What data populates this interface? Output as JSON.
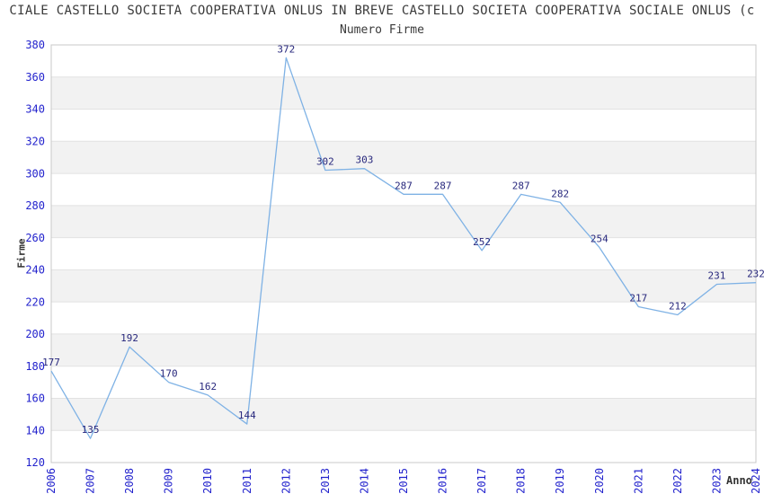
{
  "chart_data": {
    "type": "line",
    "title": "CIALE CASTELLO SOCIETA COOPERATIVA ONLUS IN BREVE CASTELLO SOCIETA COOPERATIVA SOCIALE ONLUS (c",
    "subtitle": "Numero Firme",
    "xlabel": "Anno",
    "ylabel": "Firme",
    "categories": [
      "2006",
      "2007",
      "2008",
      "2009",
      "2010",
      "2011",
      "2012",
      "2013",
      "2014",
      "2015",
      "2016",
      "2017",
      "2018",
      "2019",
      "2020",
      "2021",
      "2022",
      "2023",
      "2024"
    ],
    "values": [
      177,
      135,
      192,
      170,
      162,
      144,
      372,
      302,
      303,
      287,
      287,
      252,
      287,
      282,
      254,
      217,
      212,
      231,
      232
    ],
    "ylim": [
      120,
      380
    ],
    "ytick_step": 20,
    "yticks": [
      120,
      140,
      160,
      180,
      200,
      220,
      240,
      260,
      280,
      300,
      320,
      340,
      360,
      380
    ],
    "grid": "horizontal-bands",
    "legend": "none",
    "data_labels_shown": true,
    "xtick_rotation_deg": -90,
    "colors": {
      "line": "#7fb2e5",
      "tick_label": "#2323cd",
      "data_label": "#28287d",
      "band_gray": "#f2f2f2",
      "band_white": "#ffffff",
      "gridline": "#e2e2e2",
      "plot_border": "#c8c8c8",
      "text_dark": "#3a3a3a",
      "background": "#ffffff"
    }
  }
}
